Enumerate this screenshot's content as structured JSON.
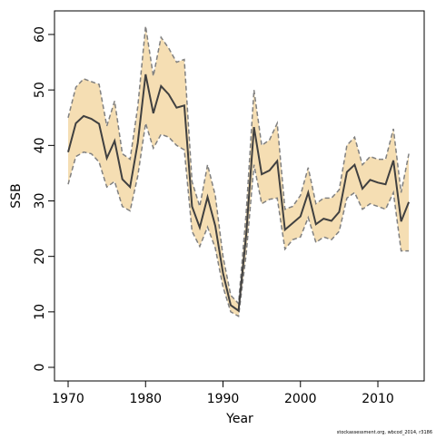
{
  "chart_data": {
    "type": "line_band",
    "xlabel": "Year",
    "ylabel": "SSB",
    "footnote": "stockassessment.org, wbcod_2014, r3186",
    "x": [
      1970,
      1971,
      1972,
      1973,
      1974,
      1975,
      1976,
      1977,
      1978,
      1979,
      1980,
      1981,
      1982,
      1983,
      1984,
      1985,
      1986,
      1987,
      1988,
      1989,
      1990,
      1991,
      1992,
      1993,
      1994,
      1995,
      1996,
      1997,
      1998,
      1999,
      2000,
      2001,
      2002,
      2003,
      2004,
      2005,
      2006,
      2007,
      2008,
      2009,
      2010,
      2011,
      2012,
      2013,
      2014
    ],
    "values": [
      38.8,
      44,
      45.3,
      44.8,
      43.9,
      37.7,
      40.8,
      33.9,
      32.5,
      40.5,
      52.8,
      45.8,
      50.7,
      49.2,
      46.8,
      47.2,
      29,
      25.2,
      30.7,
      25.5,
      17,
      11.2,
      10.2,
      24,
      43.3,
      34.8,
      35.5,
      37.2,
      24.8,
      26,
      27.2,
      31.5,
      25.8,
      26.8,
      26.4,
      28,
      35.2,
      36.5,
      32.2,
      33.8,
      33.3,
      33,
      37.3,
      26.3,
      29.8
    ],
    "upper": [
      45,
      50.5,
      52,
      51.5,
      51,
      43.5,
      48,
      38.5,
      37.5,
      47,
      61.5,
      52.5,
      59.5,
      57.5,
      55,
      55.5,
      33.5,
      29,
      36.5,
      31,
      20,
      13,
      11.5,
      28,
      50,
      40,
      41,
      44,
      28.5,
      29,
      31,
      36,
      29.5,
      30.5,
      30.5,
      32,
      40,
      41.5,
      36.5,
      38,
      37.5,
      37.5,
      43,
      31.5,
      38.5
    ],
    "lower": [
      33,
      38,
      38.8,
      38.5,
      37,
      32.5,
      33.5,
      29,
      28.2,
      34.5,
      44,
      39.5,
      42,
      41.5,
      40,
      39.2,
      24.5,
      21.8,
      25.3,
      21.5,
      14.5,
      10,
      9.2,
      20.5,
      36.5,
      29.5,
      30.3,
      30.5,
      21.3,
      23,
      23.5,
      27,
      22.5,
      23.5,
      23,
      24.5,
      30.5,
      31.5,
      28.5,
      29.5,
      29,
      28.5,
      31.5,
      21,
      21
    ],
    "line_color": "#404040",
    "band_color": "#f5deb3",
    "band_edge_color": "#808080",
    "xlim": [
      1968.24,
      2015.98
    ],
    "ylim": [
      -2.45,
      64.25
    ],
    "xticks": [
      1970,
      1980,
      1990,
      2000,
      2010
    ],
    "yticks": [
      0,
      10,
      20,
      30,
      40,
      50,
      60
    ]
  }
}
